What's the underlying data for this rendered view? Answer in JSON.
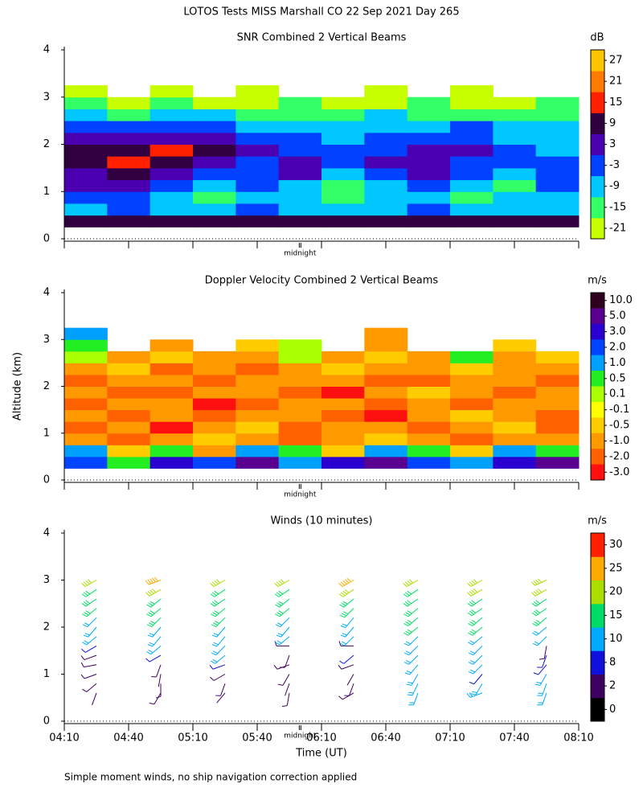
{
  "title": "LOTOS Tests MISS Marshall CO  22 Sep 2021 Day 265",
  "footnote": "Simple moment winds, no ship navigation correction applied",
  "chart_data": [
    {
      "type": "heatmap",
      "title": "SNR Combined 2 Vertical Beams",
      "xlim": [
        250,
        490
      ],
      "xticks": [
        250,
        280,
        310,
        340,
        370,
        400,
        430,
        460,
        490
      ],
      "ylim": [
        0,
        4
      ],
      "yticks": [
        0,
        1,
        2,
        3,
        4
      ],
      "annotation": {
        "text": "midnight",
        "x": 360
      },
      "x": [
        260,
        280,
        300,
        320,
        340,
        360,
        380,
        400,
        420,
        440,
        460,
        480
      ],
      "y": [
        0.375,
        0.625,
        0.875,
        1.125,
        1.375,
        1.625,
        1.875,
        2.125,
        2.375,
        2.625,
        2.875,
        3.125
      ],
      "z": [
        [
          9,
          9,
          9,
          9,
          9,
          9,
          9,
          9,
          9,
          9,
          9,
          9
        ],
        [
          -9,
          -3,
          -9,
          -9,
          -3,
          -9,
          -9,
          -9,
          -3,
          -9,
          -9,
          -9
        ],
        [
          -3,
          -3,
          -9,
          -15,
          -9,
          -9,
          -15,
          -9,
          -9,
          -15,
          -9,
          -9
        ],
        [
          3,
          3,
          -3,
          -9,
          -3,
          -9,
          -15,
          -9,
          -3,
          -9,
          -15,
          -3
        ],
        [
          3,
          9,
          3,
          -3,
          -3,
          3,
          -9,
          -3,
          3,
          -3,
          -9,
          -3
        ],
        [
          9,
          15,
          9,
          3,
          -3,
          3,
          -3,
          3,
          3,
          -3,
          -3,
          -3
        ],
        [
          9,
          9,
          15,
          9,
          3,
          -3,
          -3,
          -3,
          3,
          3,
          -3,
          -9
        ],
        [
          3,
          3,
          3,
          3,
          -3,
          -3,
          -9,
          -3,
          -3,
          -3,
          -9,
          -9
        ],
        [
          -3,
          -3,
          -3,
          -3,
          -9,
          -9,
          -9,
          -9,
          -9,
          -3,
          -9,
          -9
        ],
        [
          -9,
          -15,
          -9,
          -9,
          -15,
          -15,
          -15,
          -9,
          -15,
          -15,
          -15,
          -15
        ],
        [
          -15,
          -21,
          -15,
          -21,
          -21,
          -15,
          -21,
          -21,
          -15,
          -21,
          -21,
          -15
        ],
        [
          -21,
          null,
          -21,
          null,
          -21,
          null,
          null,
          -21,
          null,
          -21,
          null,
          null
        ]
      ],
      "colorbar": {
        "label": "dB",
        "lim": [
          -24,
          30
        ],
        "ticks": [
          -21,
          -15,
          -9,
          -3,
          3,
          9,
          15,
          21,
          27
        ],
        "colors": [
          "#c8ff00",
          "#33ff66",
          "#00c8ff",
          "#0040ff",
          "#4a00b0",
          "#300040",
          "#ff2000",
          "#ff7a00",
          "#ffc400"
        ]
      }
    },
    {
      "type": "heatmap",
      "title": "Doppler Velocity Combined 2 Vertical Beams",
      "ylabel": "Altitude (km)",
      "xlim": [
        250,
        490
      ],
      "xticks": [
        250,
        280,
        310,
        340,
        370,
        400,
        430,
        460,
        490
      ],
      "ylim": [
        0,
        4
      ],
      "yticks": [
        0,
        1,
        2,
        3,
        4
      ],
      "annotation": {
        "text": "midnight",
        "x": 360
      },
      "x": [
        260,
        280,
        300,
        320,
        340,
        360,
        380,
        400,
        420,
        440,
        460,
        480
      ],
      "y": [
        0.375,
        0.625,
        0.875,
        1.125,
        1.375,
        1.625,
        1.875,
        2.125,
        2.375,
        2.625,
        2.875,
        3.125
      ],
      "z": [
        [
          2,
          0.5,
          3,
          2,
          5,
          1,
          3,
          5,
          2,
          1,
          3,
          5
        ],
        [
          1,
          -0.5,
          0.5,
          -1,
          1,
          0.5,
          -0.5,
          1,
          0.5,
          -0.5,
          1,
          0.5
        ],
        [
          -1,
          -2,
          -1,
          -0.5,
          -1,
          -2,
          -1,
          -0.5,
          -1,
          -2,
          -1,
          -1
        ],
        [
          -2,
          -1,
          -3,
          -1,
          -0.5,
          -2,
          -1,
          -1,
          -2,
          -1,
          -0.5,
          -2
        ],
        [
          -1,
          -2,
          -1,
          -2,
          -1,
          -1,
          -2,
          -3,
          -1,
          -0.5,
          -1,
          -2
        ],
        [
          -2,
          -1,
          -1,
          -3,
          -2,
          -1,
          -1,
          -2,
          -1,
          -2,
          -1,
          -1
        ],
        [
          -1,
          -2,
          -2,
          -1,
          -1,
          -2,
          -3,
          -1,
          -0.5,
          -1,
          -2,
          -1
        ],
        [
          -2,
          -1,
          -1,
          -2,
          -1,
          -1,
          -1,
          -2,
          -2,
          -1,
          -1,
          -2
        ],
        [
          -1,
          -0.5,
          -2,
          -1,
          -2,
          -1,
          -0.5,
          -1,
          -1,
          -0.5,
          -1,
          -1
        ],
        [
          0.1,
          -1,
          -0.5,
          -1,
          -1,
          0.1,
          -1,
          -0.5,
          -1,
          0.5,
          -1,
          -0.5
        ],
        [
          0.5,
          null,
          -1,
          null,
          -0.5,
          0.1,
          null,
          -1,
          null,
          null,
          -0.5,
          null
        ],
        [
          1,
          null,
          null,
          null,
          null,
          null,
          null,
          -1,
          null,
          null,
          null,
          null
        ]
      ],
      "colorbar": {
        "label": "m/s",
        "ticks": [
          {
            "value": 10,
            "label": "10.0"
          },
          {
            "value": 5,
            "label": "5.0"
          },
          {
            "value": 3,
            "label": "3.0"
          },
          {
            "value": 2,
            "label": "2.0"
          },
          {
            "value": 1,
            "label": "1.0"
          },
          0.5,
          0.1,
          -0.1,
          -0.5,
          {
            "value": -1,
            "label": "-1.0"
          },
          {
            "value": -2,
            "label": "-2.0"
          },
          {
            "value": -3,
            "label": "-3.0"
          }
        ],
        "colors": [
          "#300020",
          "#5a0090",
          "#2a00d0",
          "#0044ff",
          "#00a0ff",
          "#22ee22",
          "#aaff00",
          "#ffff00",
          "#ffcc00",
          "#ff9900",
          "#ff6000",
          "#ff1010"
        ]
      }
    },
    {
      "type": "barbs",
      "title": "Winds (10 minutes)",
      "xlabel": "Time (UT)",
      "xlim": [
        250,
        490
      ],
      "xticks": [
        {
          "value": 250,
          "label": "04:10"
        },
        {
          "value": 280,
          "label": "04:40"
        },
        {
          "value": 310,
          "label": "05:10"
        },
        {
          "value": 340,
          "label": "05:40"
        },
        {
          "value": 370,
          "label": "06:10"
        },
        {
          "value": 400,
          "label": "06:40"
        },
        {
          "value": 430,
          "label": "07:10"
        },
        {
          "value": 460,
          "label": "07:40"
        },
        {
          "value": 490,
          "label": "08:10"
        }
      ],
      "ylim": [
        0,
        4
      ],
      "yticks": [
        0,
        1,
        2,
        3,
        4
      ],
      "annotation": {
        "text": "midnight",
        "x": 360
      },
      "altitudes": [
        0.6,
        0.8,
        1.0,
        1.2,
        1.4,
        1.6,
        1.8,
        2.0,
        2.2,
        2.4,
        2.6,
        2.8,
        3.0
      ],
      "series": [
        {
          "x": 265,
          "speeds": [
            4,
            5,
            5,
            6,
            6,
            8,
            10,
            12,
            13,
            15,
            17,
            18,
            20
          ],
          "directions": [
            200,
            230,
            250,
            260,
            250,
            240,
            230,
            220,
            225,
            230,
            235,
            235,
            240
          ]
        },
        {
          "x": 295,
          "speeds": [
            5,
            6,
            4,
            6,
            8,
            10,
            12,
            14,
            16,
            17,
            19,
            22,
            25
          ],
          "directions": [
            210,
            180,
            190,
            200,
            240,
            230,
            220,
            220,
            225,
            230,
            230,
            240,
            250
          ]
        },
        {
          "x": 325,
          "speeds": [
            4,
            5,
            6,
            8,
            10,
            11,
            12,
            14,
            15,
            17,
            18,
            19,
            20
          ],
          "directions": [
            220,
            200,
            240,
            250,
            230,
            225,
            220,
            220,
            225,
            230,
            235,
            235,
            240
          ]
        },
        {
          "x": 355,
          "speeds": [
            5,
            4,
            6,
            5,
            7,
            5,
            10,
            12,
            14,
            16,
            18,
            19,
            21
          ],
          "directions": [
            190,
            200,
            210,
            250,
            200,
            270,
            230,
            220,
            225,
            230,
            230,
            235,
            240
          ]
        },
        {
          "x": 385,
          "speeds": [
            6,
            5,
            4,
            6,
            8,
            5,
            10,
            12,
            14,
            16,
            18,
            20,
            26
          ],
          "directions": [
            240,
            200,
            210,
            250,
            230,
            270,
            225,
            220,
            220,
            225,
            230,
            235,
            240
          ]
        },
        {
          "x": 415,
          "speeds": [
            10,
            11,
            10,
            12,
            12,
            13,
            14,
            15,
            16,
            17,
            18,
            19,
            20
          ],
          "directions": [
            200,
            205,
            210,
            220,
            225,
            225,
            225,
            230,
            230,
            230,
            235,
            235,
            240
          ]
        },
        {
          "x": 445,
          "speeds": [
            11,
            10,
            9,
            10,
            12,
            13,
            14,
            15,
            16,
            17,
            18,
            22,
            24
          ],
          "directions": [
            250,
            210,
            220,
            225,
            225,
            225,
            230,
            230,
            230,
            235,
            235,
            240,
            240
          ]
        },
        {
          "x": 475,
          "speeds": [
            11,
            12,
            10,
            9,
            8,
            6,
            11,
            13,
            15,
            17,
            19,
            21,
            22
          ],
          "directions": [
            200,
            200,
            210,
            220,
            200,
            190,
            225,
            230,
            230,
            235,
            235,
            240,
            245
          ]
        }
      ],
      "colorbar": {
        "label": "m/s",
        "ticks": [
          0,
          2,
          8,
          10,
          15,
          20,
          25,
          30
        ],
        "colors": [
          "#000000",
          "#400060",
          "#1010dd",
          "#00aaff",
          "#00dd66",
          "#aadd00",
          "#ffaa00",
          "#ff2000"
        ]
      }
    }
  ]
}
